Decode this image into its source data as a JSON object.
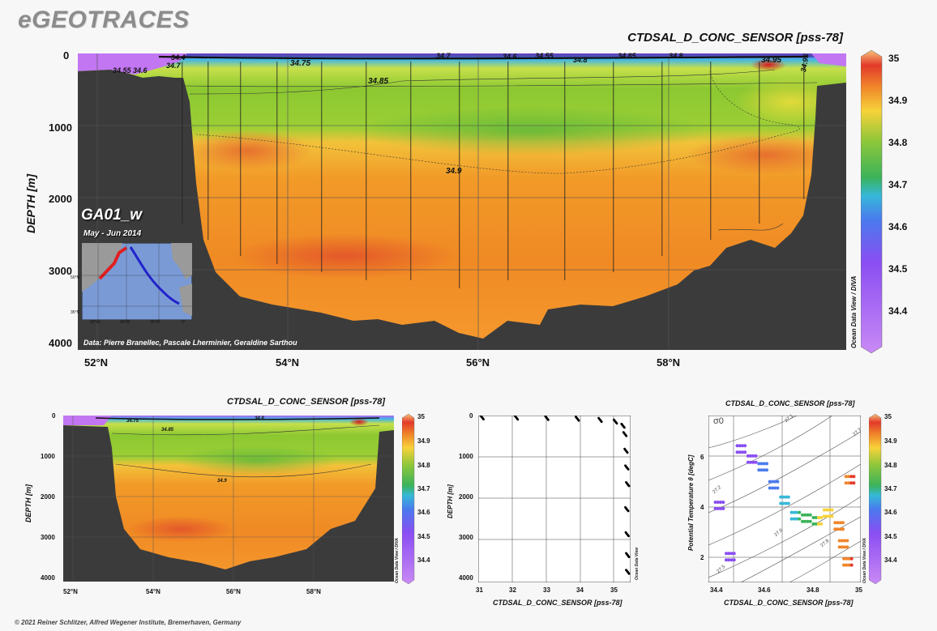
{
  "brand": "eGEOTRACES",
  "footer": "© 2021 Reiner Schlitzer, Alfred Wegener Institute, Bremerhaven, Germany",
  "colorbar": {
    "ticks": [
      "35",
      "34.9",
      "34.8",
      "34.7",
      "34.6",
      "34.5",
      "34.4"
    ],
    "credit": "Ocean Data View / DIVA"
  },
  "main": {
    "title": "CTDSAL_D_CONC_SENSOR [pss-78]",
    "ylabel": "DEPTH [m]",
    "yticks": [
      "0",
      "1000",
      "2000",
      "3000",
      "4000"
    ],
    "xticks": [
      "52°N",
      "54°N",
      "56°N",
      "58°N"
    ],
    "section": "GA01_w",
    "period": "May - Jun 2014",
    "data_credit": "Data: Pierre Branellec, Pascale Lherminier, Geraldine Sarthou",
    "contour_labels": [
      "34.55",
      "34.6",
      "34.7",
      "34.75",
      "34.85",
      "34.9",
      "34.7",
      "34.6",
      "34.55",
      "34.8",
      "34.85",
      "34.8",
      "34.95",
      "34.95",
      "34.4"
    ]
  },
  "map_inset": {
    "lat_labels": [
      "50°N",
      "35°N"
    ],
    "lon_labels": [
      "60°W",
      "40°W",
      "20°W",
      "0°"
    ]
  },
  "section_small": {
    "title": "CTDSAL_D_CONC_SENSOR [pss-78]",
    "ylabel": "DEPTH [m]",
    "yticks": [
      "0",
      "1000",
      "2000",
      "3000",
      "4000"
    ],
    "xticks": [
      "52°N",
      "54°N",
      "56°N",
      "58°N"
    ],
    "contour_labels": [
      "34.75",
      "34.85",
      "34.8",
      "34.9"
    ]
  },
  "profile": {
    "ylabel": "DEPTH [m]",
    "xlabel": "CTDSAL_D_CONC_SENSOR [pss-78]",
    "yticks": [
      "0",
      "1000",
      "2000",
      "3000",
      "4000"
    ],
    "xticks": [
      "31",
      "32",
      "33",
      "34",
      "35"
    ],
    "credit": "Ocean Data View"
  },
  "ts": {
    "title": "CTDSAL_D_CONC_SENSOR [pss-78]",
    "ylabel": "Potential Temperature θ [degC]",
    "xlabel": "CTDSAL_D_CONC_SENSOR [pss-78]",
    "yticks": [
      "6",
      "4",
      "2"
    ],
    "xticks": [
      "34.4",
      "34.6",
      "34.8",
      "35"
    ],
    "sigma_symbol": "σ0",
    "isopycnal_labels": [
      "27.1",
      "27.7",
      "27.2",
      "27.6",
      "27.5",
      "27.8"
    ]
  },
  "chart_data": [
    {
      "type": "heatmap",
      "title": "CTDSAL_D_CONC_SENSOR [pss-78]",
      "xlabel": "",
      "ylabel": "DEPTH [m]",
      "x_categories": [
        "52°N",
        "54°N",
        "56°N",
        "58°N"
      ],
      "xlim": [
        51.9,
        59.9
      ],
      "ylim": [
        4000,
        0
      ],
      "color_range": [
        34.3,
        35.05
      ],
      "colorbar_ticks": [
        34.4,
        34.5,
        34.6,
        34.7,
        34.8,
        34.9,
        35
      ],
      "description_values": {
        "surface_min": 34.4,
        "core_max": 34.95,
        "deep": 34.9
      }
    },
    {
      "type": "scatter",
      "xlabel": "CTDSAL_D_CONC_SENSOR [pss-78]",
      "ylabel": "DEPTH [m]",
      "xlim": [
        31,
        35
      ],
      "ylim": [
        4000,
        0
      ],
      "x": [
        31.1,
        32.0,
        32.8,
        33.6,
        34.2,
        34.6,
        34.8,
        34.85,
        34.88,
        34.9,
        34.92,
        34.9,
        34.91,
        34.92,
        34.92
      ],
      "y": [
        0,
        5,
        15,
        30,
        60,
        100,
        200,
        400,
        800,
        1200,
        1600,
        2200,
        2800,
        3300,
        3700
      ]
    },
    {
      "type": "scatter",
      "xlabel": "CTDSAL_D_CONC_SENSOR [pss-78]",
      "ylabel": "Potential Temperature θ [degC]",
      "xlim": [
        34.3,
        35.0
      ],
      "ylim": [
        1,
        7.5
      ],
      "x": [
        34.35,
        34.4,
        34.45,
        34.5,
        34.55,
        34.6,
        34.65,
        34.7,
        34.75,
        34.8,
        34.85,
        34.9,
        34.92,
        34.94,
        34.95
      ],
      "y": [
        4.0,
        2.0,
        6.2,
        5.8,
        5.5,
        4.8,
        4.2,
        3.6,
        3.5,
        3.4,
        3.7,
        3.2,
        2.5,
        1.8,
        5.0
      ]
    }
  ]
}
